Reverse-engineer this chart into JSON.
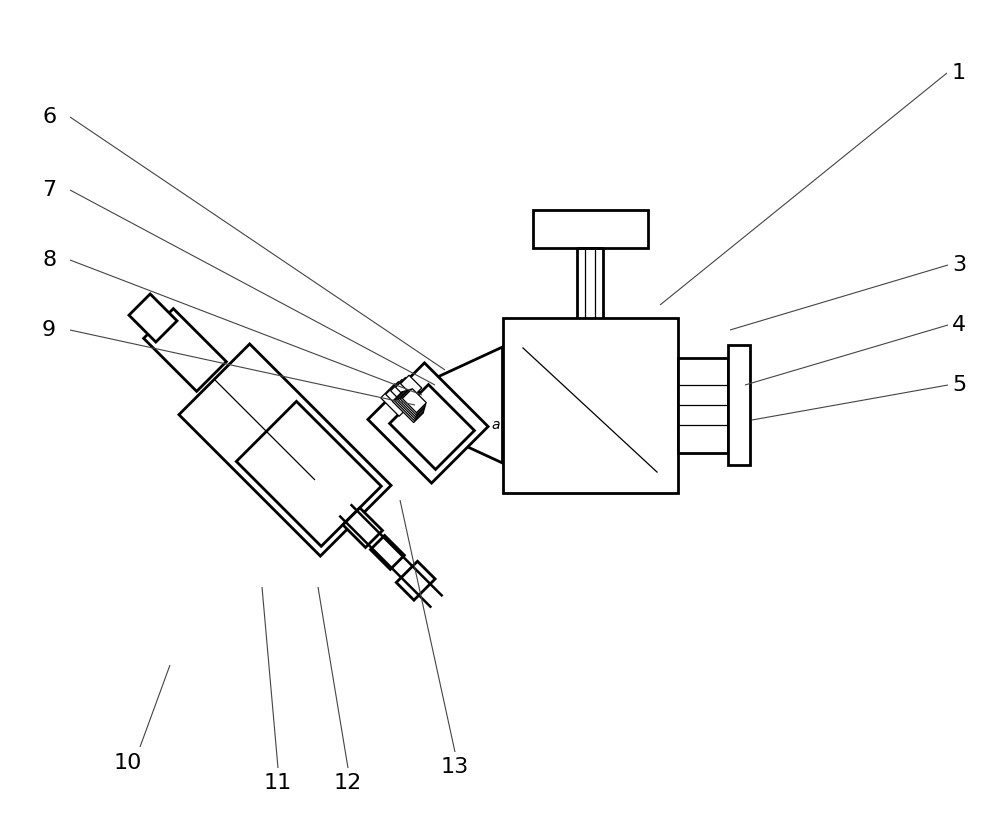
{
  "bg_color": "#ffffff",
  "line_color": "#000000",
  "lw": 1.8,
  "tlw": 2.0,
  "thin_lw": 0.9
}
